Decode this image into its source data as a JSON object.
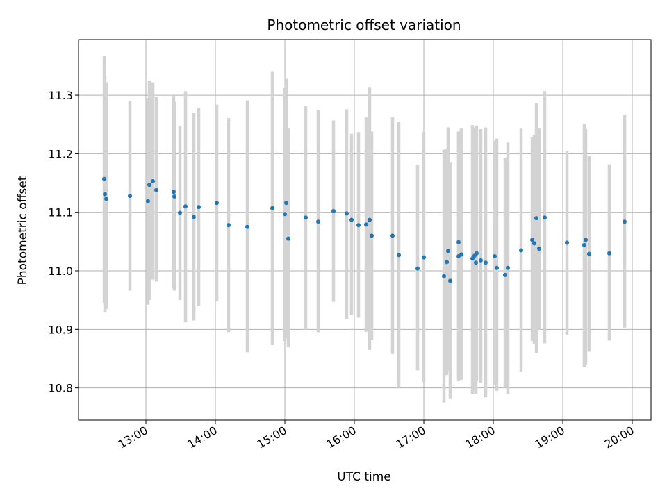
{
  "chart_data": {
    "type": "scatter",
    "title": "Photometric offset variation",
    "xlabel": "UTC time",
    "ylabel": "Photometric offset",
    "x_ticks": [
      "13:00",
      "14:00",
      "15:00",
      "16:00",
      "17:00",
      "18:00",
      "19:00",
      "20:00"
    ],
    "y_ticks": [
      "10.8",
      "10.9",
      "11.0",
      "11.1",
      "11.2",
      "11.3"
    ],
    "x_unit": "UTC hours",
    "xlim": [
      12.03,
      20.27
    ],
    "ylim": [
      10.745,
      11.395
    ],
    "grid": true,
    "legend": "none",
    "colors": {
      "points": "#1f77b4",
      "error_bars": "#d3d3d3",
      "grid": "#b0b0b0"
    },
    "series": [
      {
        "x": [
          12.4,
          12.41,
          12.43,
          12.77,
          13.03,
          13.05,
          13.1,
          13.15,
          13.4,
          13.41,
          13.49,
          13.57,
          13.69,
          13.76,
          14.02,
          14.19,
          14.46,
          14.82,
          15.0,
          15.02,
          15.05,
          15.3,
          15.48,
          15.7,
          15.89,
          15.96,
          16.06,
          16.17,
          16.22,
          16.25,
          16.55,
          16.64,
          16.91,
          17.0,
          17.29,
          17.33,
          17.35,
          17.38,
          17.5,
          17.5,
          17.54,
          17.7,
          17.73,
          17.76,
          17.75,
          17.82,
          17.89,
          18.02,
          18.05,
          18.17,
          18.21,
          18.4,
          18.56,
          18.59,
          18.62,
          18.66,
          18.74,
          19.06,
          19.31,
          19.33,
          19.38,
          19.67,
          19.89
        ],
        "y": [
          11.157,
          11.131,
          11.123,
          11.128,
          11.119,
          11.147,
          11.153,
          11.138,
          11.135,
          11.127,
          11.099,
          11.11,
          11.092,
          11.109,
          11.116,
          11.078,
          11.075,
          11.107,
          11.097,
          11.116,
          11.055,
          11.091,
          11.084,
          11.102,
          11.098,
          11.087,
          11.078,
          11.079,
          11.087,
          11.06,
          11.06,
          11.027,
          11.004,
          11.023,
          10.991,
          11.015,
          11.034,
          10.983,
          11.049,
          11.025,
          11.028,
          11.021,
          11.026,
          11.03,
          11.014,
          11.018,
          11.014,
          11.025,
          11.005,
          10.993,
          11.005,
          11.035,
          11.053,
          11.047,
          11.09,
          11.038,
          11.091,
          11.048,
          11.044,
          11.053,
          11.029,
          11.03,
          11.084
        ],
        "error_low": [
          10.945,
          10.93,
          10.935,
          10.966,
          10.942,
          10.95,
          10.985,
          10.982,
          10.97,
          10.966,
          10.95,
          10.912,
          10.915,
          10.94,
          10.948,
          10.895,
          10.861,
          10.873,
          10.88,
          10.885,
          10.87,
          10.9,
          10.895,
          10.947,
          10.918,
          10.925,
          10.92,
          10.896,
          10.865,
          10.882,
          10.858,
          10.8,
          10.83,
          10.81,
          10.775,
          10.822,
          10.83,
          10.782,
          10.815,
          10.812,
          10.814,
          10.79,
          10.795,
          10.812,
          10.79,
          10.808,
          10.784,
          10.805,
          10.795,
          10.8,
          10.79,
          10.828,
          10.88,
          10.875,
          10.86,
          10.9,
          10.876,
          10.891,
          10.836,
          10.84,
          10.862,
          10.881,
          10.903
        ],
        "error_high": [
          11.367,
          11.332,
          11.322,
          11.29,
          11.295,
          11.325,
          11.322,
          11.297,
          11.3,
          11.289,
          11.248,
          11.307,
          11.27,
          11.278,
          11.284,
          11.261,
          11.291,
          11.341,
          11.312,
          11.328,
          11.244,
          11.282,
          11.275,
          11.257,
          11.276,
          11.234,
          11.237,
          11.262,
          11.314,
          11.238,
          11.262,
          11.255,
          11.181,
          11.237,
          11.207,
          11.208,
          11.245,
          11.186,
          11.237,
          11.238,
          11.244,
          11.249,
          11.245,
          11.248,
          11.24,
          11.242,
          11.245,
          11.222,
          11.226,
          11.193,
          11.219,
          11.243,
          11.229,
          11.232,
          11.286,
          11.243,
          11.307,
          11.205,
          11.251,
          11.242,
          11.196,
          11.182,
          11.266
        ]
      }
    ]
  }
}
